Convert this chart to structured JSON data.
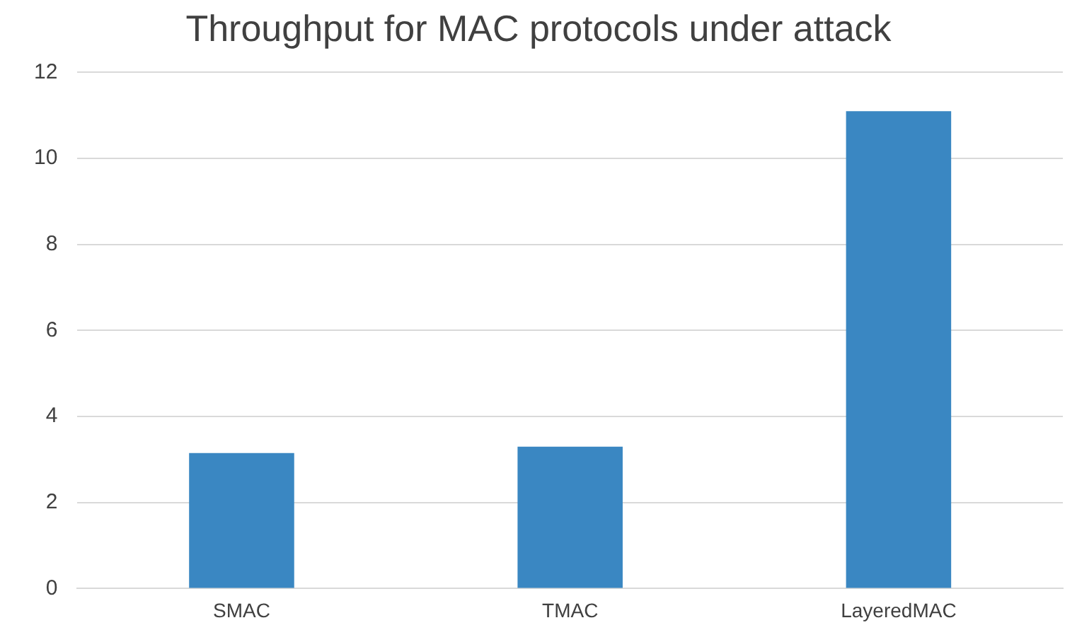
{
  "chart_data": {
    "type": "bar",
    "title": "Throughput for MAC protocols under attack",
    "categories": [
      "SMAC",
      "TMAC",
      "LayeredMAC"
    ],
    "values": [
      3.15,
      3.3,
      11.1
    ],
    "color": "#3a87c2",
    "ylim": [
      0,
      12
    ],
    "yticks": [
      0,
      2,
      4,
      6,
      8,
      10,
      12
    ],
    "grid": "y"
  }
}
